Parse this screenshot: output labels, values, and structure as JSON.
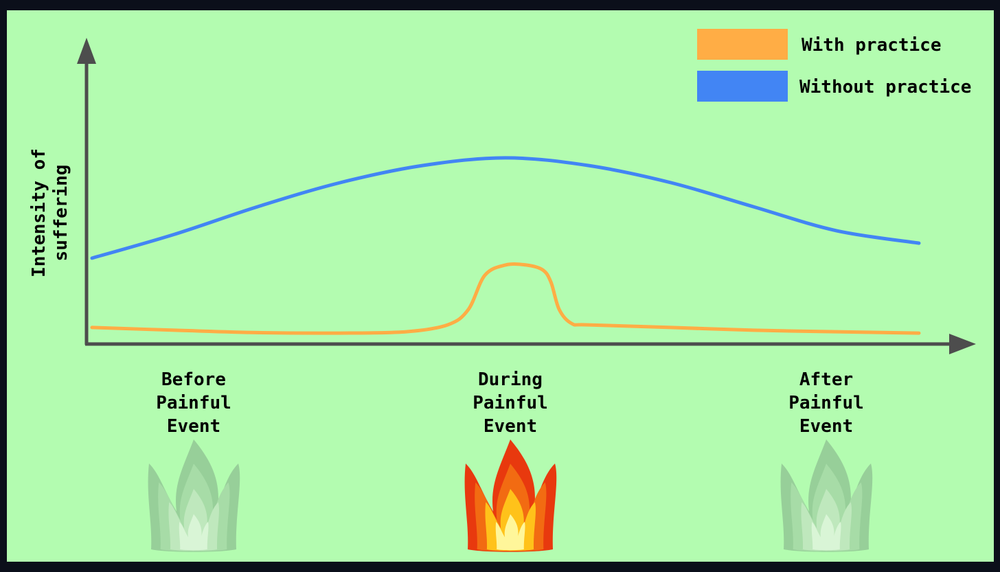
{
  "chart_data": {
    "type": "line",
    "title": "",
    "xlabel": "",
    "ylabel": "Intensity of suffering",
    "ylabel_lines": [
      "Intensity of",
      "suffering"
    ],
    "categories": [
      [
        "Before",
        "Painful",
        "Event"
      ],
      [
        "During",
        "Painful",
        "Event"
      ],
      [
        "After",
        "Painful",
        "Event"
      ]
    ],
    "xlim": [
      0,
      100
    ],
    "ylim": [
      0,
      100
    ],
    "grid": false,
    "legend_position": "top-right",
    "series": [
      {
        "name": "With practice",
        "color": "#ffad45",
        "x": [
          0,
          10,
          20,
          30,
          38,
          43,
          45.5,
          47.5,
          50,
          52.5,
          54.5,
          55.5,
          56.5,
          58,
          60,
          70,
          80,
          90,
          100
        ],
        "y": [
          7.4,
          6.2,
          5.1,
          4.9,
          5.5,
          8.6,
          15.4,
          30.8,
          35.4,
          35.4,
          33.2,
          27.7,
          15.4,
          9.2,
          8.6,
          7.4,
          6.2,
          5.5,
          4.9
        ]
      },
      {
        "name": "Without practice",
        "color": "#4285f4",
        "x": [
          0,
          10,
          20,
          30,
          40,
          50,
          60,
          70,
          80,
          90,
          100
        ],
        "y": [
          38.5,
          49.2,
          61.5,
          72.3,
          80.0,
          83.4,
          80.0,
          72.3,
          61.5,
          50.8,
          45.2
        ]
      }
    ],
    "flame_highlight_index": 1
  }
}
